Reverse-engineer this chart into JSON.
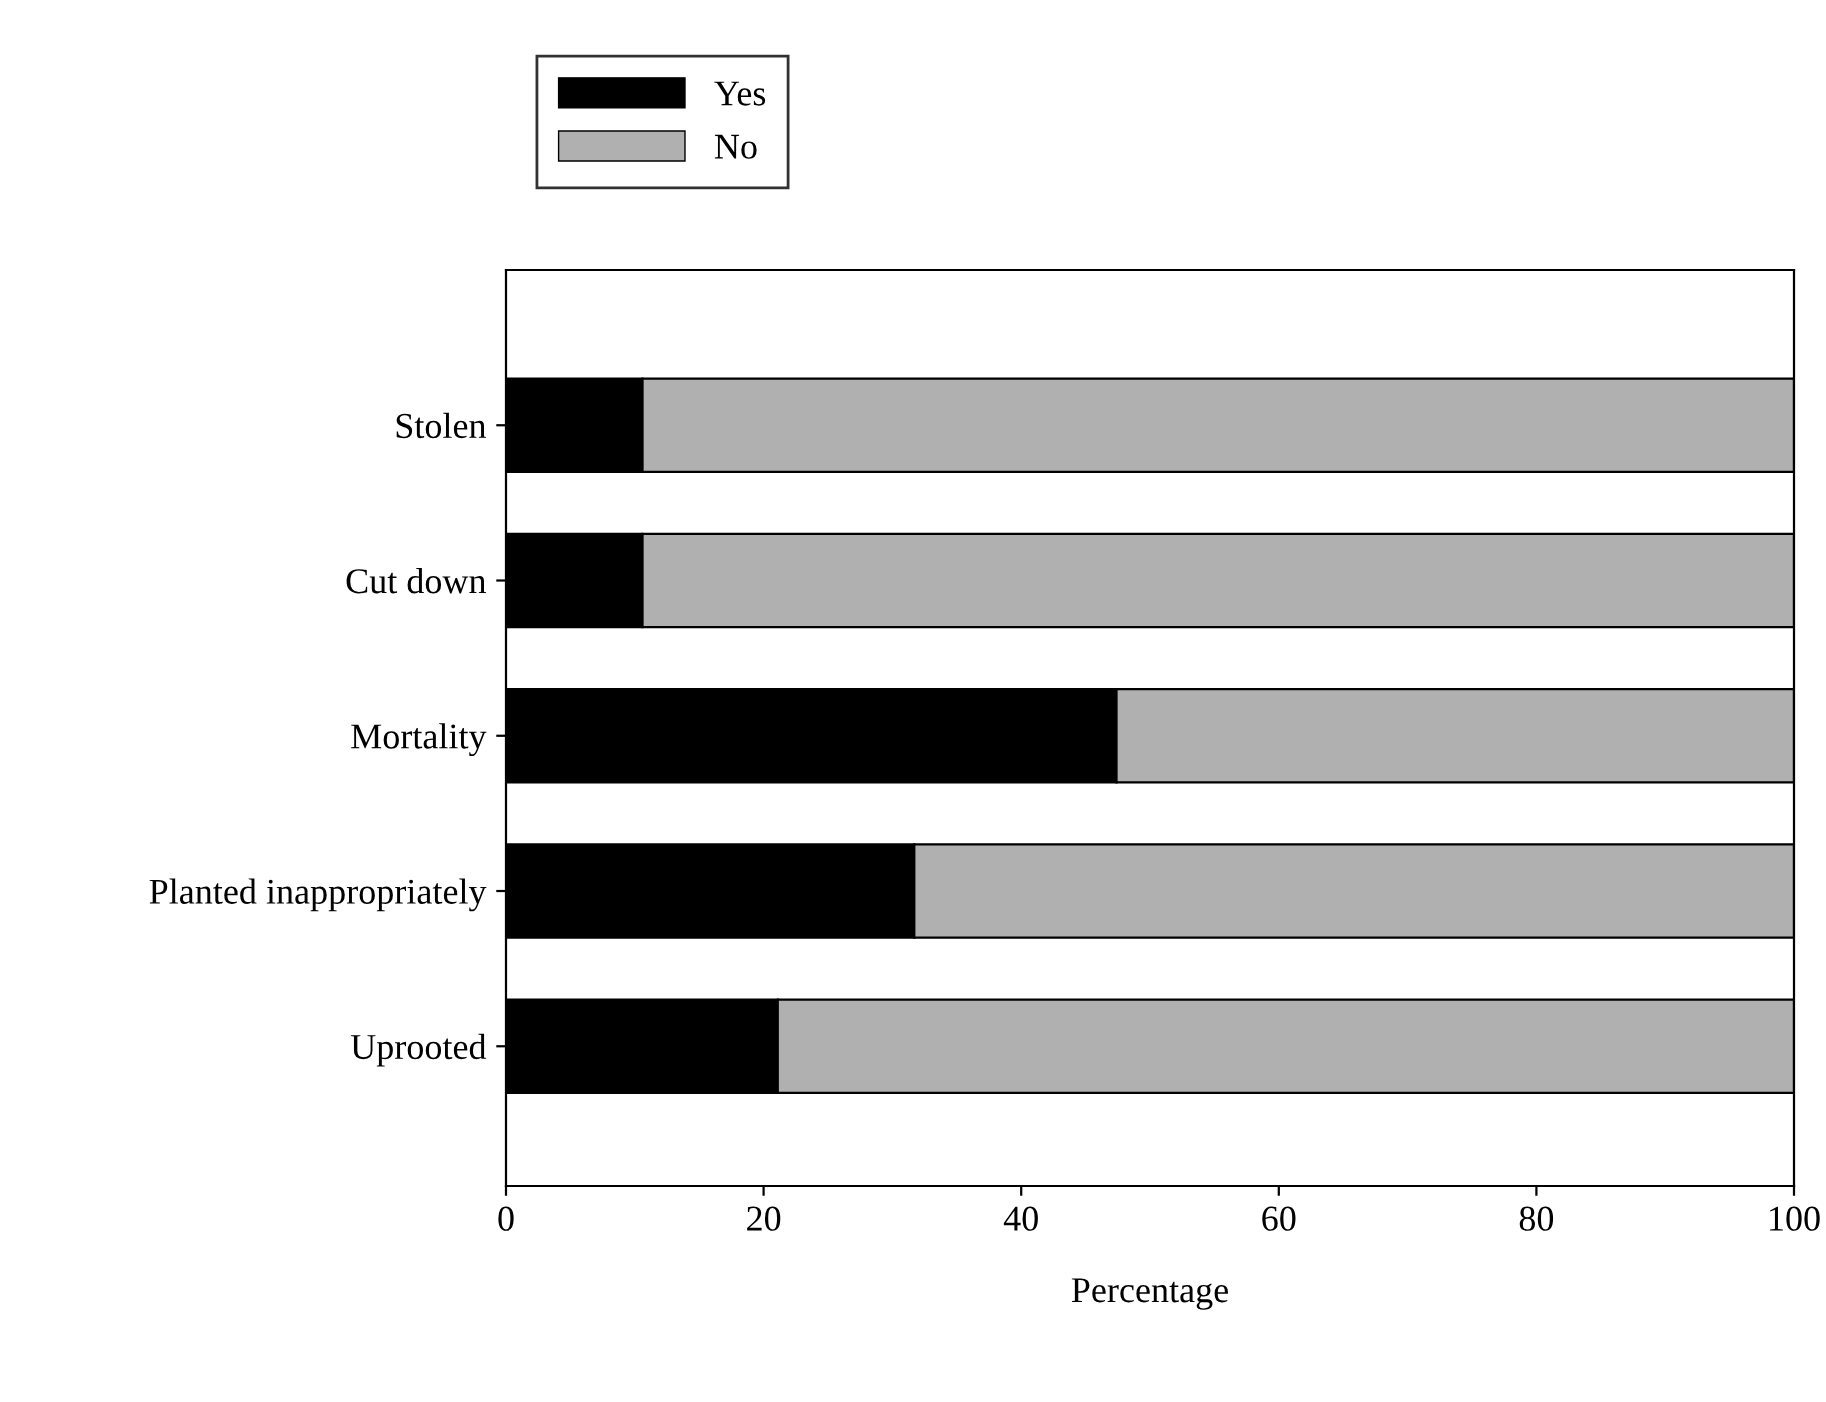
{
  "chart_data": {
    "type": "bar",
    "orientation": "horizontal",
    "stacked": true,
    "categories": [
      "Stolen",
      "Cut down",
      "Mortality",
      "Planted inappropriately",
      "Uprooted"
    ],
    "series": [
      {
        "name": "Yes",
        "color": "#000000",
        "values": [
          10.6,
          10.6,
          47.4,
          31.7,
          21.1
        ]
      },
      {
        "name": "No",
        "color": "#b0b0b0",
        "values": [
          89.4,
          89.4,
          52.6,
          68.3,
          78.9
        ]
      }
    ],
    "xlabel": "Percentage",
    "xlim": [
      0,
      100
    ],
    "xticks": [
      0,
      20,
      40,
      60,
      80,
      100
    ],
    "grid": false,
    "legend": "top left"
  }
}
